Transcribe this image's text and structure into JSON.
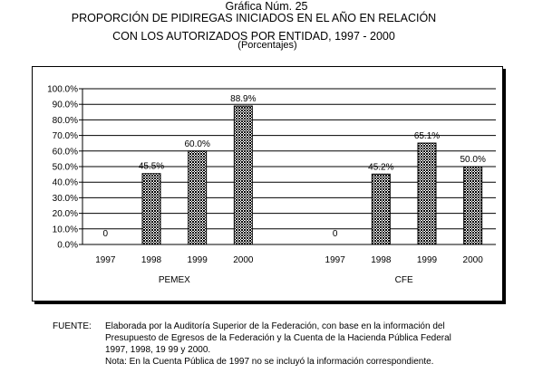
{
  "header": {
    "number": "Gráfica Núm. 25",
    "title_line1": "PROPORCIÓN DE PIDIREGAS INICIADOS EN EL AÑO EN RELACIÓN",
    "title_line2": "CON LOS AUTORIZADOS POR ENTIDAD, 1997 - 2000",
    "subtitle": "(Porcentajes)"
  },
  "chart_data": {
    "type": "bar",
    "title": "PROPORCIÓN DE PIDIREGAS INICIADOS EN EL AÑO EN RELACIÓN CON LOS AUTORIZADOS POR ENTIDAD, 1997 - 2000",
    "ylabel": "",
    "xlabel": "",
    "ylim": [
      0,
      100
    ],
    "y_ticks": [
      "0.0%",
      "10.0%",
      "20.0%",
      "30.0%",
      "40.0%",
      "50.0%",
      "60.0%",
      "70.0%",
      "80.0%",
      "90.0%",
      "100.0%"
    ],
    "grid": true,
    "groups": [
      {
        "name": "PEMEX",
        "categories": [
          "1997",
          "1998",
          "1999",
          "2000"
        ],
        "values": [
          0,
          45.5,
          60.0,
          88.9
        ],
        "labels": [
          "0",
          "45.5%",
          "60.0%",
          "88.9%"
        ]
      },
      {
        "name": "CFE",
        "categories": [
          "1997",
          "1998",
          "1999",
          "2000"
        ],
        "values": [
          0,
          45.2,
          65.1,
          50.0
        ],
        "labels": [
          "0",
          "45.2%",
          "65.1%",
          "50.0%"
        ]
      }
    ],
    "bar_pattern": "crosshatch"
  },
  "footer": {
    "source_label": "FUENTE:",
    "source_lines": [
      "Elaborada por la Auditoría Superior de la Federación, con base en la información del",
      "Presupuesto de Egresos de la Federación y la Cuenta de la Hacienda Pública Federal",
      "1997, 1998, 19 99 y 2000.",
      "Nota: En la Cuenta Pública de 1997 no se incluyó la información correspondiente."
    ]
  }
}
